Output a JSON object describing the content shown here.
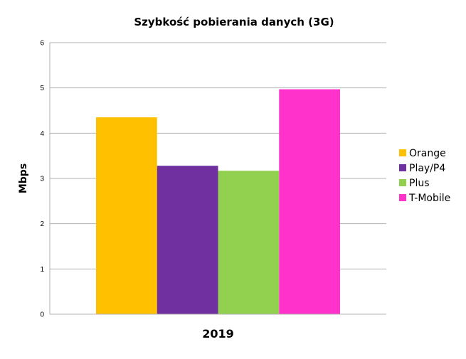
{
  "chart_data": {
    "type": "bar",
    "title": "Szybkość pobierania danych (3G)",
    "xlabel": "",
    "ylabel": "Mbps",
    "categories": [
      "2019"
    ],
    "series": [
      {
        "name": "Orange",
        "values": [
          4.35
        ],
        "color": "#ffc000"
      },
      {
        "name": "Play/P4",
        "values": [
          3.28
        ],
        "color": "#7030a0"
      },
      {
        "name": "Plus",
        "values": [
          3.17
        ],
        "color": "#92d050"
      },
      {
        "name": "T-Mobile",
        "values": [
          4.97
        ],
        "color": "#ff33cc"
      }
    ],
    "ylim": [
      0,
      6
    ],
    "yticks": [
      "0",
      "1",
      "2",
      "3",
      "4",
      "5",
      "6"
    ],
    "grid": true,
    "legend_position": "right"
  }
}
